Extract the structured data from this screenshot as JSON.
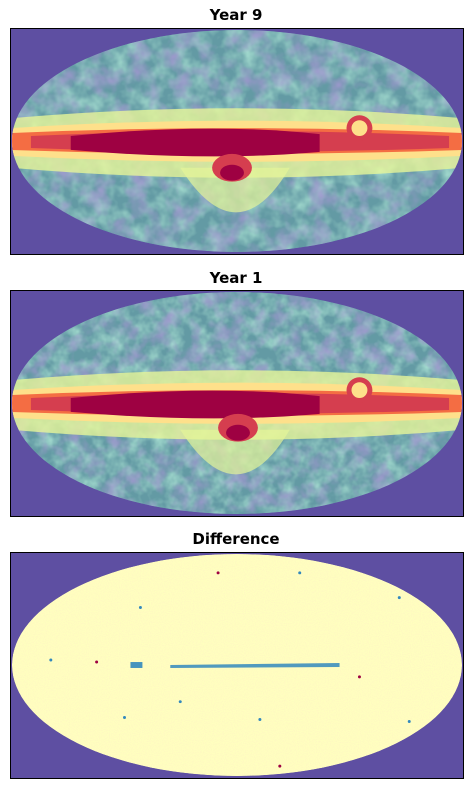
{
  "panels": [
    {
      "title": "Year 9",
      "kind": "skymap"
    },
    {
      "title": "Year 1",
      "kind": "skymap"
    },
    {
      "title": "Difference",
      "kind": "difference"
    }
  ],
  "colors": {
    "background": "#5e4fa2",
    "dark_red": "#9e0142",
    "red": "#d53e4f",
    "orange": "#f46d43",
    "yellow": "#fee08b",
    "pale": "#ffffbf",
    "light_green": "#e6f598",
    "green": "#abdda4",
    "teal": "#66c2a5",
    "blue": "#3288bd"
  }
}
